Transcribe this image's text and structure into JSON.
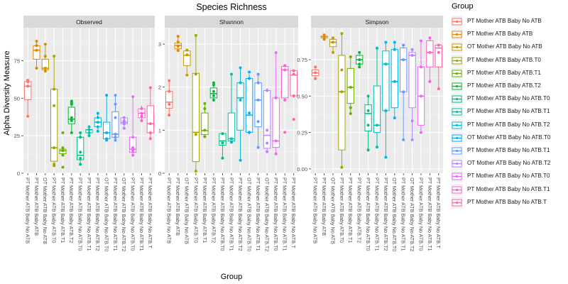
{
  "title": "Species Richness",
  "legend": {
    "title": "Group",
    "items": [
      {
        "label": "PT Mother ATB Baby No ATB",
        "color": "#F8766D"
      },
      {
        "label": "PT Mother ATB Baby ATB",
        "color": "#E58700"
      },
      {
        "label": "OT Mother ATB Baby No ATB",
        "color": "#C99800"
      },
      {
        "label": "PT Mother ATB Baby ATB.T0",
        "color": "#A3A500"
      },
      {
        "label": "PT Mother ATB Baby ATB.T1",
        "color": "#6BB100"
      },
      {
        "label": "PT Mother ATB Baby ATB.T2",
        "color": "#00BA38"
      },
      {
        "label": "PT Mother ATB Baby No ATB.T0",
        "color": "#00BF7D"
      },
      {
        "label": "PT Mother ATB Baby No ATB.T1",
        "color": "#00C0AF"
      },
      {
        "label": "PT Mother ATB Baby No ATB.T2",
        "color": "#00BCD8"
      },
      {
        "label": "OT Mother ATB Baby No ATB.T0",
        "color": "#00B0F6"
      },
      {
        "label": "PT Mother ATB Baby No ATB.T1",
        "color": "#619CFF"
      },
      {
        "label": "OT Mother ATB Baby No ATB.T2",
        "color": "#B983FF"
      },
      {
        "label": "PT Mother ATB Baby No ATB.T0",
        "color": "#E76BF3"
      },
      {
        "label": "PT Mother ATB Baby No ATB.T1",
        "color": "#FD61D1"
      },
      {
        "label": "PT Mother ATB Baby No ATB.T",
        "color": "#FF67A4"
      }
    ]
  },
  "chart_data": {
    "type": "box",
    "title": "Species Richness",
    "xlabel": "Group",
    "ylabel": "Alpha Diversity Measure",
    "categories": [
      "PT Mother ATB Baby No ATB",
      "PT Mother ATB Baby ATB",
      "OT Mother ATB Baby No ATB",
      "PT Mother ATB Baby ATB.T0",
      "PT Mother ATB Baby ATB.T1",
      "PT Mother ATB Baby ATB.T2",
      "PT Mother ATB Baby No ATB.T0",
      "PT Mother ATB Baby No ATB.T1",
      "PT Mother ATB Baby No ATB.T2",
      "OT Mother ATB Baby No ATB.T0",
      "PT Mother ATB Baby No ATB.T1",
      "OT Mother ATB Baby No ATB.T2",
      "PT Mother ATB Baby No ATB.T0",
      "PT Mother ATB Baby No ATB.T1",
      "PT Mother ATB Baby No ATB.T"
    ],
    "grid": true,
    "legend_position": "right",
    "panels": [
      {
        "name": "Observed",
        "ylim": [
          0,
          97
        ],
        "yticks": [
          0,
          25,
          50,
          75
        ],
        "boxes": [
          {
            "min": 38,
            "q1": 49,
            "median": 58,
            "q3": 61,
            "max": 62,
            "points": [
              38,
              58,
              61,
              62
            ]
          },
          {
            "min": 70,
            "q1": 76,
            "median": 82,
            "q3": 85,
            "max": 88,
            "points": [
              70,
              82,
              85,
              88
            ]
          },
          {
            "min": 68,
            "q1": 69,
            "median": 70,
            "q3": 76,
            "max": 86,
            "points": [
              68,
              70,
              78,
              86
            ]
          },
          {
            "min": 5,
            "q1": 8,
            "median": 17,
            "q3": 56,
            "max": 78,
            "points": [
              5,
              6,
              17,
              45,
              56,
              78
            ]
          },
          {
            "min": 12,
            "q1": 13,
            "median": 15,
            "q3": 16,
            "max": 17,
            "points": [
              4,
              12,
              15,
              17,
              27
            ]
          },
          {
            "min": 27,
            "q1": 33,
            "median": 36,
            "q3": 44,
            "max": 49,
            "points": [
              27,
              35,
              37,
              46,
              47,
              48
            ]
          },
          {
            "min": 6,
            "q1": 9,
            "median": 12,
            "q3": 24,
            "max": 27,
            "points": [
              6,
              10,
              14,
              24,
              27
            ]
          },
          {
            "min": 25,
            "q1": 27,
            "median": 29,
            "q3": 29,
            "max": 31,
            "points": [
              25,
              27,
              29,
              31
            ]
          },
          {
            "min": 28,
            "q1": 31,
            "median": 34,
            "q3": 37,
            "max": 40,
            "points": [
              28,
              31,
              34,
              37,
              40
            ]
          },
          {
            "min": 22,
            "q1": 23,
            "median": 27,
            "q3": 34,
            "max": 51,
            "points": [
              22,
              23,
              27,
              52
            ]
          },
          {
            "min": 22,
            "q1": 24,
            "median": 26,
            "q3": 41,
            "max": 52,
            "points": [
              22,
              24,
              26,
              37,
              46,
              52
            ]
          },
          {
            "min": 30,
            "q1": 33,
            "median": 34,
            "q3": 37,
            "max": 38,
            "points": [
              30,
              33,
              35,
              37
            ]
          },
          {
            "min": 12,
            "q1": 14,
            "median": 16,
            "q3": 24,
            "max": 51,
            "points": [
              12,
              15,
              17,
              24,
              51
            ]
          },
          {
            "min": 36,
            "q1": 37,
            "median": 40,
            "q3": 43,
            "max": 45,
            "points": [
              35,
              38,
              40,
              43
            ]
          },
          {
            "min": 23,
            "q1": 27,
            "median": 33,
            "q3": 45,
            "max": 57,
            "points": [
              23,
              27,
              33,
              57
            ]
          }
        ]
      },
      {
        "name": "Shannon",
        "ylim": [
          0,
          3.38
        ],
        "yticks": [
          0,
          1,
          2,
          3
        ],
        "boxes": [
          {
            "min": 1.35,
            "q1": 1.51,
            "median": 1.65,
            "q3": 1.9,
            "max": 2.15,
            "points": [
              1.35,
              1.6,
              1.9,
              2.15
            ]
          },
          {
            "min": 2.83,
            "q1": 2.89,
            "median": 2.97,
            "q3": 3.02,
            "max": 3.18,
            "points": [
              2.85,
              2.95,
              3.05,
              3.18
            ]
          },
          {
            "min": 2.28,
            "q1": 2.5,
            "median": 2.74,
            "q3": 2.84,
            "max": 2.86,
            "points": [
              2.28,
              2.75,
              2.86
            ]
          },
          {
            "min": 0.05,
            "q1": 0.27,
            "median": 0.95,
            "q3": 2.32,
            "max": 3.2,
            "points": [
              0.05,
              0.9,
              2.3,
              3.2
            ]
          },
          {
            "min": 0.85,
            "q1": 0.9,
            "median": 0.99,
            "q3": 1.4,
            "max": 1.62,
            "points": [
              0.85,
              1.0,
              1.5,
              1.62
            ]
          },
          {
            "min": 1.7,
            "q1": 1.75,
            "median": 1.85,
            "q3": 1.98,
            "max": 2.1,
            "points": [
              1.7,
              1.8,
              1.9,
              2.05,
              2.1
            ]
          },
          {
            "min": 0.35,
            "q1": 0.65,
            "median": 0.75,
            "q3": 0.92,
            "max": 0.95,
            "points": [
              0.35,
              0.7,
              0.92
            ]
          },
          {
            "min": 0.7,
            "q1": 0.75,
            "median": 0.8,
            "q3": 1.4,
            "max": 2.3,
            "points": [
              0.72,
              0.8,
              2.3
            ]
          },
          {
            "min": 0.3,
            "q1": 1.0,
            "median": 1.75,
            "q3": 2.1,
            "max": 2.45,
            "points": [
              0.3,
              1.7,
              2.1,
              2.45
            ]
          },
          {
            "min": 0.9,
            "q1": 0.95,
            "median": 1.35,
            "q3": 2.2,
            "max": 2.3,
            "points": [
              0.95,
              1.4,
              2.2,
              2.35
            ]
          },
          {
            "min": 0.6,
            "q1": 1.08,
            "median": 1.7,
            "q3": 2.1,
            "max": 2.3,
            "points": [
              0.6,
              1.2,
              1.7,
              2.1,
              2.3
            ]
          },
          {
            "min": 0.5,
            "q1": 0.58,
            "median": 0.88,
            "q3": 1.92,
            "max": 1.98,
            "points": [
              0.5,
              0.7,
              1.0,
              1.92
            ]
          },
          {
            "min": 0.45,
            "q1": 0.6,
            "median": 0.75,
            "q3": 1.75,
            "max": 2.8,
            "points": [
              0.45,
              0.75,
              1.75,
              2.8
            ]
          },
          {
            "min": 1.7,
            "q1": 1.75,
            "median": 2.4,
            "q3": 2.48,
            "max": 2.52,
            "points": [
              0.95,
              1.7,
              2.4,
              2.5
            ]
          },
          {
            "min": 1.75,
            "q1": 1.8,
            "median": 2.28,
            "q3": 2.38,
            "max": 2.4,
            "points": [
              1.25,
              1.8,
              2.3,
              2.38
            ]
          }
        ]
      },
      {
        "name": "Simpson",
        "ylim": [
          -0.03,
          0.97
        ],
        "yticks": [
          0.0,
          0.25,
          0.5,
          0.75
        ],
        "boxes": [
          {
            "min": 0.63,
            "q1": 0.64,
            "median": 0.66,
            "q3": 0.68,
            "max": 0.7,
            "points": [
              0.62,
              0.66,
              0.7
            ]
          },
          {
            "min": 0.89,
            "q1": 0.9,
            "median": 0.91,
            "q3": 0.91,
            "max": 0.92,
            "points": [
              0.89,
              0.9,
              0.91,
              0.92
            ]
          },
          {
            "min": 0.8,
            "q1": 0.84,
            "median": 0.87,
            "q3": 0.89,
            "max": 0.9,
            "points": [
              0.8,
              0.87,
              0.9
            ]
          },
          {
            "min": 0.01,
            "q1": 0.13,
            "median": 0.53,
            "q3": 0.78,
            "max": 0.93,
            "points": [
              0.01,
              0.53,
              0.68,
              0.93
            ]
          },
          {
            "min": 0.38,
            "q1": 0.45,
            "median": 0.56,
            "q3": 0.69,
            "max": 0.77,
            "points": [
              0.38,
              0.42,
              0.56,
              0.77
            ]
          },
          {
            "min": 0.71,
            "q1": 0.72,
            "median": 0.75,
            "q3": 0.78,
            "max": 0.8,
            "points": [
              0.7,
              0.72,
              0.75,
              0.8
            ]
          },
          {
            "min": 0.13,
            "q1": 0.26,
            "median": 0.38,
            "q3": 0.44,
            "max": 0.5,
            "points": [
              0.13,
              0.3,
              0.4,
              0.5
            ]
          },
          {
            "min": 0.15,
            "q1": 0.25,
            "median": 0.3,
            "q3": 0.57,
            "max": 0.83,
            "points": [
              0.15,
              0.3,
              0.83
            ]
          },
          {
            "min": 0.08,
            "q1": 0.4,
            "median": 0.72,
            "q3": 0.81,
            "max": 0.87,
            "points": [
              0.08,
              0.4,
              0.72,
              0.87
            ]
          },
          {
            "min": 0.35,
            "q1": 0.42,
            "median": 0.6,
            "q3": 0.82,
            "max": 0.87,
            "points": [
              0.35,
              0.6,
              0.82,
              0.87
            ]
          },
          {
            "min": 0.2,
            "q1": 0.53,
            "median": 0.75,
            "q3": 0.83,
            "max": 0.85,
            "points": [
              0.2,
              0.53,
              0.75,
              0.85
            ]
          },
          {
            "min": 0.2,
            "q1": 0.42,
            "median": 0.78,
            "q3": 0.8,
            "max": 0.82,
            "points": [
              0.2,
              0.33,
              0.78,
              0.82
            ]
          },
          {
            "min": 0.25,
            "q1": 0.3,
            "median": 0.5,
            "q3": 0.7,
            "max": 0.88,
            "points": [
              0.25,
              0.5,
              0.7,
              0.88
            ]
          },
          {
            "min": 0.6,
            "q1": 0.7,
            "median": 0.8,
            "q3": 0.88,
            "max": 0.9,
            "points": [
              0.6,
              0.8,
              0.9
            ]
          },
          {
            "min": 0.55,
            "q1": 0.7,
            "median": 0.83,
            "q3": 0.85,
            "max": 0.85,
            "points": [
              0.55,
              0.8,
              0.85
            ]
          }
        ]
      }
    ]
  }
}
